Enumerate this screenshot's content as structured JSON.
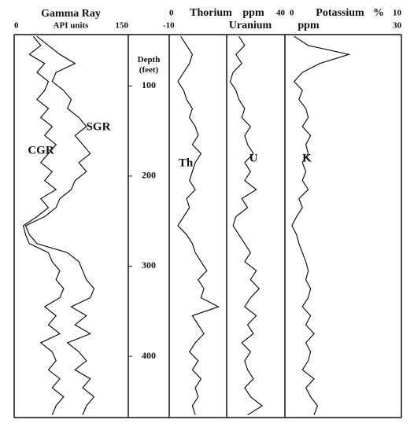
{
  "chart_data": {
    "type": "line",
    "depth_label": "Depth (feet)",
    "depth": [
      45,
      55,
      65,
      75,
      85,
      95,
      105,
      115,
      125,
      135,
      145,
      155,
      165,
      175,
      185,
      195,
      205,
      215,
      225,
      235,
      245,
      255,
      265,
      275,
      285,
      295,
      305,
      315,
      325,
      335,
      345,
      355,
      365,
      375,
      385,
      395,
      405,
      415,
      425,
      435,
      445,
      455,
      465
    ],
    "depth_lim": [
      43,
      468
    ],
    "depth_ticks": [
      100,
      200,
      300,
      400
    ],
    "tracks": [
      {
        "title": "Gamma Ray",
        "unit": "API units",
        "xlim": [
          0,
          150
        ],
        "xticks": [
          0,
          150
        ],
        "series": [
          {
            "name": "CGR",
            "color": "#111111",
            "values": [
              25,
              35,
              20,
              40,
              30,
              45,
              40,
              30,
              45,
              35,
              50,
              40,
              55,
              45,
              35,
              50,
              40,
              55,
              35,
              45,
              30,
              12,
              15,
              20,
              45,
              50,
              60,
              55,
              65,
              60,
              40,
              55,
              45,
              60,
              35,
              50,
              55,
              45,
              60,
              50,
              65,
              55,
              50
            ]
          },
          {
            "name": "SGR",
            "color": "#111111",
            "values": [
              30,
              45,
              60,
              80,
              55,
              50,
              65,
              75,
              70,
              85,
              95,
              80,
              90,
              100,
              85,
              95,
              80,
              75,
              60,
              55,
              40,
              15,
              20,
              30,
              70,
              85,
              90,
              95,
              105,
              100,
              75,
              95,
              80,
              100,
              70,
              85,
              95,
              80,
              100,
              90,
              105,
              95,
              90
            ]
          }
        ]
      },
      {
        "title": "Thorium",
        "unit": "ppm",
        "xlim": [
          0,
          40
        ],
        "xticks": [
          0,
          40
        ],
        "series": [
          {
            "name": "Th",
            "color": "#111111",
            "values": [
              4,
              6,
              8,
              7,
              5,
              3,
              5,
              6,
              8,
              7,
              9,
              10,
              8,
              11,
              9,
              8,
              7,
              9,
              6,
              7,
              5,
              3,
              6,
              8,
              9,
              11,
              13,
              10,
              12,
              11,
              17,
              8,
              10,
              12,
              9,
              7,
              10,
              8,
              11,
              9,
              10,
              8,
              9
            ]
          }
        ]
      },
      {
        "title": "Uranium",
        "unit": "ppm",
        "xlim": [
          -10,
          30
        ],
        "xticks": [
          -10,
          30
        ],
        "series": [
          {
            "name": "U",
            "color": "#111111",
            "values": [
              2,
              3,
              1.5,
              2.5,
              1,
              0.5,
              1.5,
              2,
              3,
              2.5,
              4,
              3,
              3.5,
              4.5,
              3,
              4,
              3,
              5,
              2.5,
              3.5,
              1.5,
              1,
              2,
              3,
              4,
              3,
              5,
              4,
              5.5,
              4,
              3,
              5,
              3.5,
              4.5,
              2.5,
              4,
              3,
              3.5,
              4.5,
              3,
              4,
              6,
              3.5
            ]
          }
        ]
      },
      {
        "title": "Potassium",
        "unit": "%",
        "xlim": [
          0,
          10
        ],
        "xticks": [
          0,
          10
        ],
        "series": [
          {
            "name": "K",
            "color": "#111111",
            "values": [
              0.8,
              2,
              5.5,
              3,
              1.5,
              0.8,
              1.5,
              1.2,
              1.8,
              2,
              1.5,
              2.2,
              1.8,
              2,
              1.5,
              1.8,
              1.5,
              2,
              1.2,
              1.5,
              1,
              0.6,
              1,
              1.2,
              1.5,
              1.8,
              2,
              1.8,
              2.2,
              2,
              1.5,
              2.2,
              1.8,
              2.5,
              1.8,
              2.2,
              2,
              1.5,
              2.5,
              1.8,
              2.2,
              2.8,
              2.5
            ]
          }
        ]
      }
    ]
  }
}
